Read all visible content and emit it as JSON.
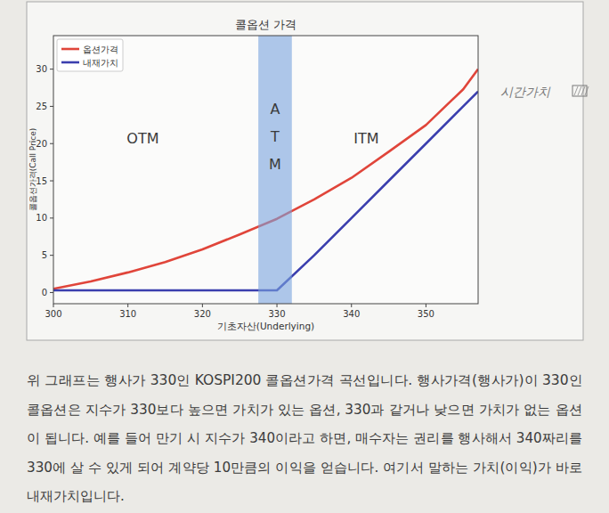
{
  "chart_data": {
    "type": "line",
    "title": "콜옵션 가격",
    "x_label": "기초자산(Underlying)",
    "y_label": "콜옵션가격(Call Price)",
    "x": [
      300,
      305,
      310,
      315,
      320,
      325,
      330,
      335,
      340,
      345,
      350,
      355,
      357
    ],
    "series": [
      {
        "name": "옵션가격",
        "color": "#e0453a",
        "values": [
          0.5,
          1.5,
          2.7,
          4.1,
          5.8,
          7.8,
          9.9,
          12.5,
          15.4,
          18.9,
          22.5,
          27.3,
          30
        ]
      },
      {
        "name": "내재가치",
        "color": "#3b3fae",
        "values": [
          0.3,
          0.3,
          0.3,
          0.3,
          0.3,
          0.3,
          0.3,
          5,
          10,
          15,
          20,
          25,
          27
        ]
      }
    ],
    "xlim": [
      300,
      357
    ],
    "ylim": [
      -1.5,
      34.5
    ],
    "xticks": [
      300,
      310,
      320,
      330,
      340,
      350
    ],
    "yticks": [
      0,
      5,
      10,
      15,
      20,
      25,
      30
    ],
    "grid": false,
    "legend": "upper-left",
    "shaded_band": {
      "x": [
        327.5,
        332
      ],
      "color": "#7aa3de",
      "label": "ATM"
    },
    "annotations": [
      {
        "text": "OTM",
        "x": 312,
        "y": 20
      },
      {
        "text": "ITM",
        "x": 342,
        "y": 20
      }
    ],
    "handwritten_note": "시간가치"
  },
  "paragraph": [
    "위 그래프는 행사가 330인 KOSPI200 콜옵션가격 곡선입니다. 행사가격(행사가)이 330인",
    "콜옵션은 지수가 330보다 높으면 가치가 있는 옵션, 330과 같거나 낮으면 가치가 없는 옵션",
    "이 됩니다. 예를 들어 만기 시 지수가 340이라고 하면, 매수자는 권리를 행사해서 340짜리를",
    "330에 살 수 있게 되어 계약당 10만큼의 이익을 얻습니다. 여기서 말하는 가치(이익)가 바로",
    "내재가치입니다."
  ]
}
